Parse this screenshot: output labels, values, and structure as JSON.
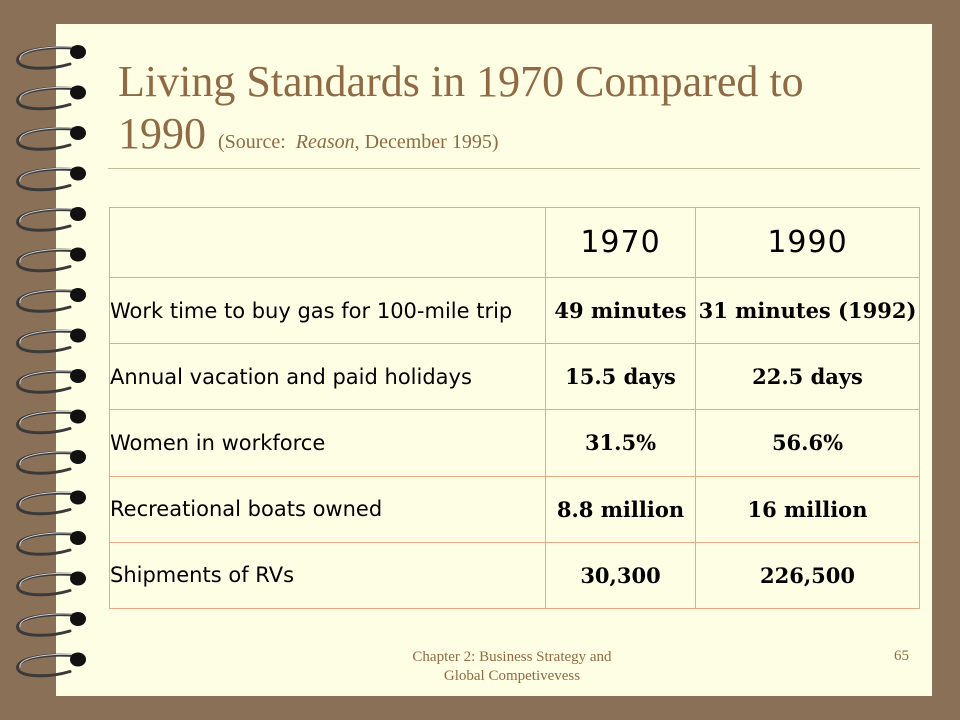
{
  "slide": {
    "title_main": "Living Standards in 1970 Compared to 1990",
    "source_prefix": "(Source:",
    "source_italic": "Reason",
    "source_suffix": ", December 1995)"
  },
  "table": {
    "header": [
      "",
      "1970",
      "1990"
    ],
    "rows": [
      {
        "label": "Work time to buy gas for 100-mile trip",
        "v1970": "49 minutes",
        "v1990": "31 minutes (1992)"
      },
      {
        "label": "Annual vacation and paid holidays",
        "v1970": "15.5 days",
        "v1990": "22.5 days"
      },
      {
        "label": "Women in workforce",
        "v1970": "31.5%",
        "v1990": "56.6%"
      },
      {
        "label": "Recreational boats owned",
        "v1970": "8.8 million",
        "v1990": "16 million"
      },
      {
        "label": "Shipments of RVs",
        "v1970": "30,300",
        "v1990": "226,500"
      }
    ]
  },
  "footer": {
    "chapter_line1": "Chapter 2: Business Strategy and",
    "chapter_line2": "Global Competivevess",
    "page_number": "65"
  },
  "colors": {
    "background": "#8b7058",
    "page": "#fefee4",
    "title": "#8f6a45",
    "table_border": "#e8a785"
  }
}
